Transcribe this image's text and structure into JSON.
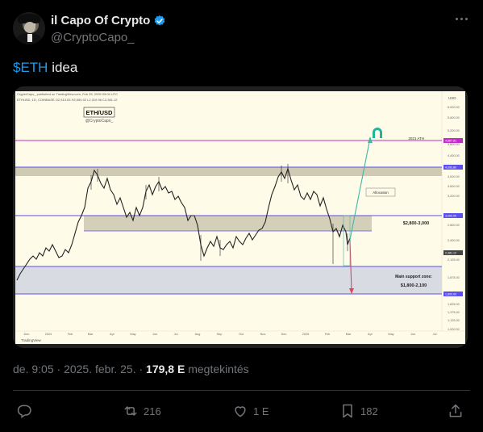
{
  "author": {
    "name": "il Capo Of Crypto",
    "handle": "@CryptoCapo_"
  },
  "tweet": {
    "cashtag": "$ETH",
    "text": " idea"
  },
  "chart": {
    "header": "CryptoCapo_ published on TradingView.com, Feb 25, 2025 09:04 UTC",
    "symbol_line": "ETHUSD, 1D, COINBASE  O2,513.53  H2,550.02  L2,319.96  C2,381.12",
    "title": "ETH/USD",
    "subtitle": "@CryptoCapo_",
    "ath_label": "2021 ATH",
    "allocation_label": "Allocation",
    "zone_label": "$2,800-3,000",
    "support_title": "Main support zone:",
    "support_range": "$1,800-2,100",
    "tv_brand": "TradingView",
    "currency": "USD",
    "x_ticks": [
      "Dec",
      "2024",
      "Feb",
      "Mar",
      "Apr",
      "May",
      "Jun",
      "Jul",
      "Aug",
      "Sep",
      "Oct",
      "Nov",
      "Dec",
      "2025",
      "Feb",
      "Mar",
      "Apr",
      "May",
      "Jun",
      "Jul"
    ],
    "y_ticks": [
      "6,000.00",
      "5,600.00",
      "5,200.00",
      "4,800.00",
      "4,400.00",
      "4,000.00",
      "3,600.00",
      "3,200.00",
      "2,800.00",
      "2,400.00",
      "2,125.00",
      "1,875.00",
      "1,625.00",
      "1,375.00",
      "1,125.00",
      "1,000.00"
    ],
    "price_tags": [
      "4,867.81",
      "4,093.80",
      "3,000.00",
      "2,381.12",
      "1,800.00"
    ],
    "colors": {
      "background": "#fffbe9",
      "ath_line": "#c02ec7",
      "level_line": "#5b4ff0",
      "zone_fill": "#cfcab4",
      "support_fill": "#d8dce2",
      "up_arrow": "#3fb7a4",
      "down_arrow": "#e4405f"
    }
  },
  "meta": {
    "time": "de. 9:05",
    "date": "2025. febr. 25.",
    "views": "179,8 E",
    "views_label": "megtekintés"
  },
  "actions": {
    "replies": "",
    "reposts": "216",
    "likes": "1 E",
    "bookmarks": "182"
  },
  "icons": [
    "verified-badge-icon",
    "more-icon",
    "reply-icon",
    "repost-icon",
    "like-icon",
    "bookmark-icon",
    "share-icon"
  ]
}
